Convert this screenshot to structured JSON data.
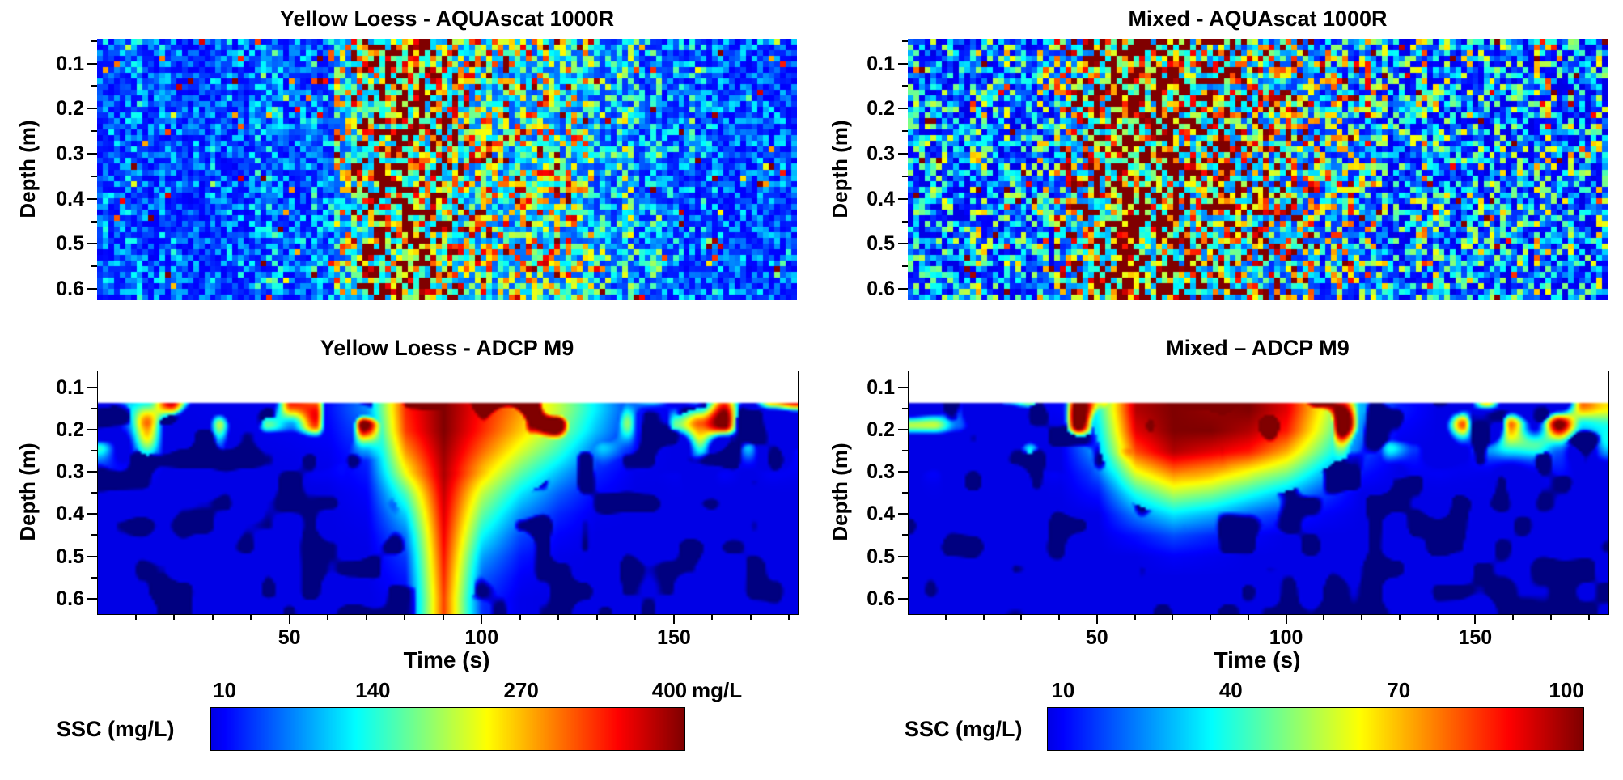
{
  "figure": {
    "background": "#ffffff",
    "text_color": "#000000",
    "colormap": "jet"
  },
  "chart_data": [
    {
      "type": "heatmap",
      "id": "aquascat-yellow-loess",
      "title": "Yellow Loess - AQUAscat 1000R",
      "instrument": "AQUAscat 1000R",
      "sample": "Yellow Loess",
      "ylabel": "Depth (m)",
      "xlabel": "",
      "yticks": [
        "0.1",
        "0.2",
        "0.3",
        "0.4",
        "0.5",
        "0.6"
      ],
      "xticks": [],
      "xtick_values": [],
      "x_range_s": [
        0,
        182
      ],
      "y_range_m": [
        0.045,
        0.625
      ],
      "ssc_range_mgL": [
        10,
        400
      ],
      "colorbar_index": 0,
      "style": "speckled-bins",
      "grid_on": false,
      "time_cols_s": [
        0,
        10,
        20,
        30,
        40,
        50,
        60,
        70,
        80,
        90,
        100,
        110,
        120,
        130,
        140,
        150,
        160,
        170,
        180
      ],
      "mean_profile_mgL": [
        55,
        60,
        55,
        60,
        62,
        65,
        80,
        260,
        330,
        240,
        190,
        170,
        150,
        120,
        90,
        70,
        60,
        55,
        55
      ]
    },
    {
      "type": "heatmap",
      "id": "aquascat-mixed",
      "title": "Mixed - AQUAscat 1000R",
      "instrument": "AQUAscat 1000R",
      "sample": "Mixed",
      "ylabel": "Depth (m)",
      "xlabel": "",
      "yticks": [
        "0.1",
        "0.2",
        "0.3",
        "0.4",
        "0.5",
        "0.6"
      ],
      "xticks": [],
      "xtick_values": [],
      "x_range_s": [
        0,
        185
      ],
      "y_range_m": [
        0.045,
        0.625
      ],
      "ssc_range_mgL": [
        10,
        100
      ],
      "colorbar_index": 1,
      "style": "speckled-bins",
      "grid_on": false,
      "time_cols_s": [
        0,
        10,
        20,
        30,
        40,
        50,
        60,
        70,
        80,
        90,
        100,
        110,
        120,
        130,
        140,
        150,
        160,
        170,
        180
      ],
      "mean_profile_mgL": [
        28,
        28,
        30,
        30,
        35,
        85,
        100,
        80,
        65,
        55,
        45,
        38,
        33,
        30,
        30,
        28,
        28,
        30,
        28
      ]
    },
    {
      "type": "heatmap",
      "id": "adcp-yellow-loess",
      "title": "Yellow Loess - ADCP M9",
      "instrument": "ADCP M9",
      "sample": "Yellow Loess",
      "ylabel": "Depth (m)",
      "xlabel": "Time (s)",
      "yticks": [
        "0.1",
        "0.2",
        "0.3",
        "0.4",
        "0.5",
        "0.6"
      ],
      "xticks": [
        "50",
        "100",
        "150"
      ],
      "xtick_values": [
        50,
        100,
        150
      ],
      "x_range_s": [
        0,
        182
      ],
      "y_range_m": [
        0.06,
        0.635
      ],
      "blank_above_m": 0.132,
      "ssc_range_mgL": [
        10,
        400
      ],
      "colorbar_index": 0,
      "style": "smooth-contour",
      "grid_on": false,
      "time_cols_s": [
        0,
        10,
        20,
        30,
        40,
        50,
        60,
        70,
        80,
        90,
        100,
        110,
        120,
        130,
        140,
        150,
        160,
        170,
        180
      ],
      "depth_rows_m": [
        0.15,
        0.2,
        0.25,
        0.3,
        0.35,
        0.4,
        0.45,
        0.5,
        0.55,
        0.6
      ],
      "grid_mgL": [
        [
          10,
          10,
          10,
          12,
          12,
          15,
          25,
          80,
          330,
          400,
          340,
          280,
          210,
          120,
          30,
          12,
          10,
          10,
          10
        ],
        [
          10,
          10,
          10,
          10,
          12,
          15,
          20,
          60,
          320,
          400,
          330,
          260,
          190,
          100,
          25,
          10,
          10,
          10,
          10
        ],
        [
          10,
          10,
          10,
          10,
          10,
          12,
          15,
          40,
          280,
          390,
          300,
          220,
          150,
          60,
          15,
          10,
          10,
          10,
          10
        ],
        [
          10,
          10,
          10,
          10,
          10,
          10,
          12,
          30,
          230,
          380,
          260,
          170,
          100,
          35,
          12,
          10,
          10,
          10,
          10
        ],
        [
          10,
          10,
          10,
          10,
          10,
          10,
          10,
          20,
          160,
          370,
          210,
          120,
          60,
          20,
          10,
          10,
          10,
          10,
          10
        ],
        [
          10,
          10,
          10,
          10,
          10,
          10,
          10,
          15,
          110,
          360,
          170,
          80,
          35,
          12,
          10,
          10,
          10,
          10,
          10
        ],
        [
          10,
          10,
          10,
          10,
          10,
          10,
          10,
          12,
          70,
          350,
          130,
          50,
          20,
          10,
          10,
          10,
          10,
          10,
          10
        ],
        [
          10,
          10,
          10,
          10,
          10,
          10,
          10,
          10,
          45,
          340,
          90,
          30,
          12,
          10,
          10,
          10,
          10,
          10,
          10
        ],
        [
          10,
          10,
          10,
          10,
          10,
          10,
          10,
          10,
          30,
          330,
          60,
          18,
          10,
          10,
          10,
          10,
          10,
          10,
          10
        ],
        [
          10,
          10,
          10,
          10,
          10,
          10,
          10,
          10,
          20,
          320,
          40,
          12,
          10,
          10,
          10,
          10,
          10,
          10,
          10
        ]
      ]
    },
    {
      "type": "heatmap",
      "id": "adcp-mixed",
      "title": "Mixed – ADCP M9",
      "instrument": "ADCP M9",
      "sample": "Mixed",
      "ylabel": "Depth (m)",
      "xlabel": "Time (s)",
      "yticks": [
        "0.1",
        "0.2",
        "0.3",
        "0.4",
        "0.5",
        "0.6"
      ],
      "xticks": [
        "50",
        "100",
        "150"
      ],
      "xtick_values": [
        50,
        100,
        150
      ],
      "x_range_s": [
        0,
        185
      ],
      "y_range_m": [
        0.06,
        0.635
      ],
      "blank_above_m": 0.132,
      "ssc_range_mgL": [
        10,
        100
      ],
      "colorbar_index": 1,
      "style": "smooth-contour",
      "grid_on": false,
      "time_cols_s": [
        0,
        10,
        20,
        30,
        40,
        50,
        60,
        70,
        80,
        90,
        100,
        110,
        120,
        130,
        140,
        150,
        160,
        170,
        180
      ],
      "depth_rows_m": [
        0.15,
        0.2,
        0.25,
        0.3,
        0.35,
        0.4,
        0.45,
        0.5,
        0.55,
        0.6
      ],
      "grid_mgL": [
        [
          10,
          10,
          10,
          10,
          12,
          40,
          95,
          100,
          98,
          100,
          90,
          60,
          30,
          15,
          10,
          10,
          10,
          10,
          10
        ],
        [
          10,
          10,
          10,
          10,
          10,
          35,
          90,
          100,
          100,
          95,
          85,
          55,
          25,
          12,
          10,
          10,
          10,
          10,
          10
        ],
        [
          10,
          10,
          10,
          10,
          10,
          30,
          80,
          95,
          90,
          85,
          70,
          45,
          20,
          10,
          10,
          10,
          10,
          10,
          10
        ],
        [
          10,
          10,
          10,
          10,
          10,
          20,
          60,
          75,
          70,
          60,
          50,
          30,
          14,
          10,
          10,
          10,
          10,
          10,
          10
        ],
        [
          10,
          10,
          10,
          10,
          10,
          14,
          40,
          55,
          50,
          40,
          30,
          18,
          10,
          10,
          10,
          10,
          10,
          10,
          10
        ],
        [
          10,
          10,
          10,
          10,
          10,
          10,
          25,
          35,
          30,
          22,
          16,
          12,
          10,
          10,
          10,
          10,
          10,
          10,
          10
        ],
        [
          10,
          10,
          10,
          10,
          10,
          10,
          14,
          20,
          16,
          12,
          10,
          10,
          10,
          10,
          10,
          10,
          10,
          10,
          10
        ],
        [
          10,
          10,
          10,
          10,
          10,
          10,
          10,
          12,
          11,
          10,
          10,
          10,
          10,
          10,
          10,
          10,
          10,
          10,
          10
        ],
        [
          10,
          10,
          10,
          10,
          10,
          10,
          10,
          10,
          10,
          10,
          10,
          10,
          10,
          10,
          10,
          10,
          10,
          10,
          10
        ],
        [
          10,
          10,
          10,
          10,
          10,
          10,
          10,
          10,
          10,
          10,
          10,
          10,
          10,
          10,
          10,
          10,
          10,
          10,
          10
        ]
      ]
    }
  ],
  "colorbars": [
    {
      "column": "left",
      "label": "SSC (mg/L)",
      "tick_labels": [
        "10",
        "140",
        "270",
        "400"
      ],
      "tick_values": [
        10,
        140,
        270,
        400
      ],
      "unit": "mg/L",
      "range_mgL": [
        10,
        400
      ]
    },
    {
      "column": "right",
      "label": "SSC (mg/L)",
      "tick_labels": [
        "10",
        "40",
        "70",
        "100"
      ],
      "tick_values": [
        10,
        40,
        70,
        100
      ],
      "unit": "",
      "range_mgL": [
        10,
        100
      ]
    }
  ]
}
